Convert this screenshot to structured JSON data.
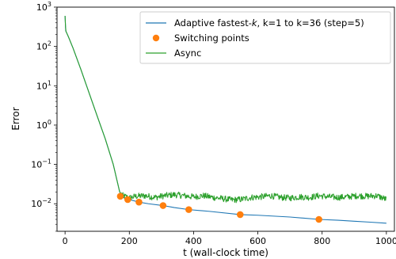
{
  "chart_data": {
    "type": "line",
    "title": "",
    "xlabel": "t (wall-clock time)",
    "ylabel": "Error",
    "x_scale": "linear",
    "y_scale": "log",
    "xlim": [
      -25,
      1025
    ],
    "ylim_log10": [
      -2.7,
      3.0
    ],
    "xticks": [
      0,
      200,
      400,
      600,
      800,
      1000
    ],
    "xtick_labels": [
      "0",
      "200",
      "400",
      "600",
      "800",
      "1000"
    ],
    "yticks": [
      {
        "exp": -2,
        "base": "10",
        "sup": "−2"
      },
      {
        "exp": -1,
        "base": "10",
        "sup": "−1"
      },
      {
        "exp": 0,
        "base": "10",
        "sup": "0"
      },
      {
        "exp": 1,
        "base": "10",
        "sup": "1"
      },
      {
        "exp": 2,
        "base": "10",
        "sup": "2"
      },
      {
        "exp": 3,
        "base": "10",
        "sup": "3"
      }
    ],
    "grid": false,
    "legend_position": "top-right",
    "legend": [
      {
        "label_pre": "Adaptive fastest-",
        "label_italic": "k",
        "label_post": ", k=1 to k=36 (step=5)"
      },
      {
        "label": "Switching points"
      },
      {
        "label": "Async"
      }
    ],
    "colors": {
      "adaptive": "#1f77b4",
      "switching": "#ff7f0e",
      "async": "#2ca02c"
    },
    "series": [
      {
        "name": "Adaptive fastest-k, k=1 to k=36 (step=5)",
        "style": "line",
        "x": [
          0,
          2,
          10,
          25,
          50,
          75,
          100,
          125,
          150,
          170,
          180,
          200,
          230,
          260,
          305,
          340,
          385,
          450,
          545,
          600,
          700,
          790,
          850,
          900,
          950,
          1000
        ],
        "y": [
          600,
          250,
          180,
          90,
          25,
          6.5,
          1.7,
          0.45,
          0.1,
          0.02,
          0.0145,
          0.0128,
          0.011,
          0.01,
          0.009,
          0.008,
          0.0071,
          0.0064,
          0.0053,
          0.0051,
          0.0046,
          0.004,
          0.0038,
          0.0036,
          0.0034,
          0.0032
        ]
      },
      {
        "name": "Switching points",
        "style": "markers",
        "x": [
          172,
          195,
          230,
          305,
          385,
          545,
          790
        ],
        "y": [
          0.0155,
          0.0128,
          0.011,
          0.009,
          0.0071,
          0.0053,
          0.004
        ]
      },
      {
        "name": "Async",
        "style": "line",
        "x": [
          0,
          2,
          10,
          25,
          50,
          75,
          100,
          125,
          150,
          170,
          180,
          190,
          200,
          220,
          250,
          280,
          310,
          340,
          370,
          400,
          430,
          460,
          490,
          520,
          550,
          580,
          610,
          640,
          670,
          700,
          730,
          760,
          790,
          820,
          850,
          880,
          910,
          940,
          970,
          1000
        ],
        "y": [
          600,
          250,
          180,
          90,
          25,
          6.5,
          1.7,
          0.45,
          0.1,
          0.02,
          0.016,
          0.015,
          0.014,
          0.0155,
          0.016,
          0.0145,
          0.016,
          0.017,
          0.016,
          0.015,
          0.016,
          0.0145,
          0.0135,
          0.0125,
          0.013,
          0.0145,
          0.015,
          0.016,
          0.0145,
          0.014,
          0.015,
          0.0145,
          0.016,
          0.015,
          0.0145,
          0.015,
          0.016,
          0.0155,
          0.016,
          0.013
        ]
      }
    ]
  }
}
